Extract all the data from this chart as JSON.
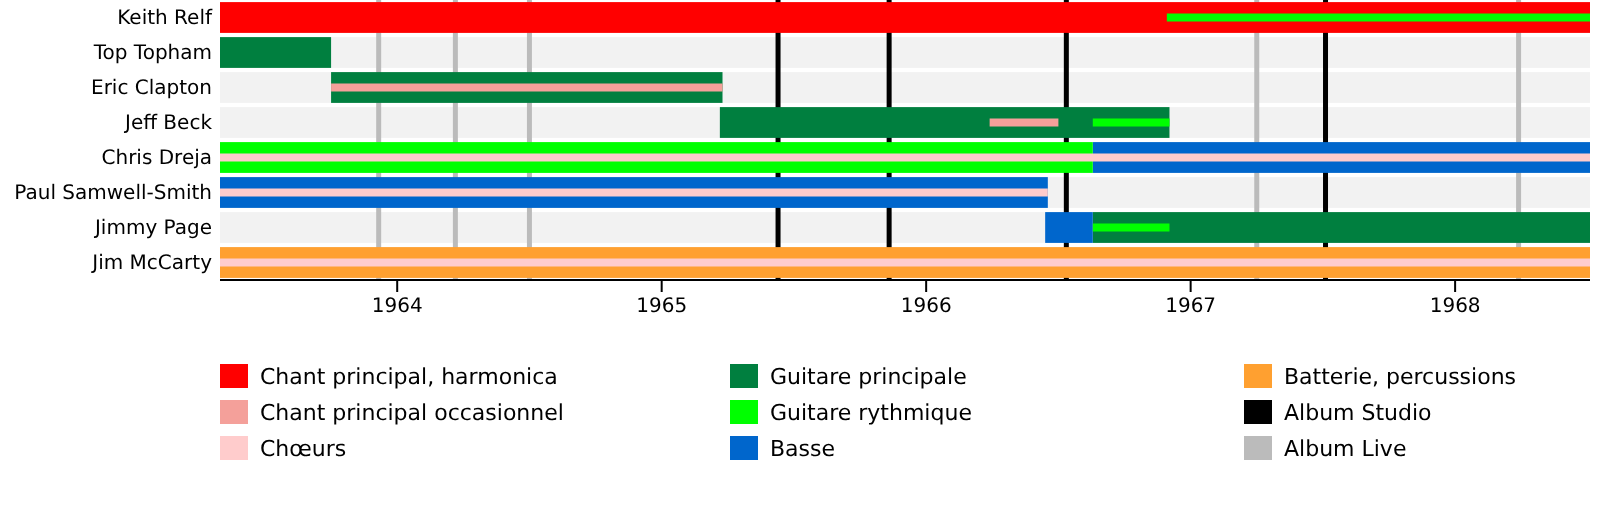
{
  "chart_data": {
    "type": "bar",
    "orientation": "horizontal",
    "categories": [
      "Keith Relf",
      "Top Topham",
      "Eric Clapton",
      "Jeff Beck",
      "Chris Dreja",
      "Paul Samwell-Smith",
      "Jimmy Page",
      "Jim McCarty"
    ],
    "xlim": [
      1963.33,
      1968.51
    ],
    "xticks": [
      1964,
      1965,
      1966,
      1967,
      1968
    ],
    "legend": "bottom",
    "series": [
      {
        "name": "Chant principal, harmonica",
        "color": "#ff0000",
        "base": [
          1963.33,
          null,
          null,
          null,
          null,
          null,
          null,
          null
        ],
        "values": [
          5.18,
          null,
          null,
          null,
          null,
          null,
          null,
          null
        ]
      },
      {
        "name": "Chant principal occasionnel",
        "color": "#f4a09a",
        "base": [
          null,
          null,
          1963.75,
          1966.24,
          null,
          null,
          null,
          null
        ],
        "values": [
          null,
          null,
          1.48,
          0.26,
          null,
          null,
          null,
          null
        ]
      },
      {
        "name": "Chœurs",
        "color": "#ffcccc",
        "base": [
          null,
          null,
          null,
          null,
          1963.33,
          1963.33,
          null,
          1963.33
        ],
        "values": [
          null,
          null,
          null,
          null,
          5.18,
          3.13,
          null,
          5.18
        ]
      },
      {
        "name": "Guitare principale",
        "color": "#007f3f",
        "base": [
          null,
          1963.33,
          1963.75,
          1965.22,
          null,
          null,
          1966.63,
          null
        ],
        "values": [
          null,
          0.42,
          1.48,
          1.7,
          null,
          null,
          1.88,
          null
        ]
      },
      {
        "name": "Guitare rythmique",
        "color": "#00ff00",
        "base": [
          1966.91,
          null,
          null,
          1966.63,
          1963.33,
          null,
          1966.63,
          null
        ],
        "values": [
          1.6,
          null,
          null,
          0.29,
          3.3,
          null,
          0.29,
          null
        ]
      },
      {
        "name": "Basse",
        "color": "#0066cc",
        "base": [
          null,
          null,
          null,
          null,
          1966.63,
          1963.33,
          1966.45,
          null
        ],
        "values": [
          null,
          null,
          null,
          null,
          1.88,
          3.13,
          0.18,
          null
        ]
      },
      {
        "name": "Batterie, percussions",
        "color": "#ffa030",
        "base": [
          null,
          null,
          null,
          null,
          null,
          null,
          null,
          1963.33
        ],
        "values": [
          null,
          null,
          null,
          null,
          null,
          null,
          null,
          5.18
        ]
      }
    ],
    "ref_lines": [
      {
        "axis": "x",
        "value": 1965.44,
        "label": "Album Studio",
        "color": "#000000"
      },
      {
        "axis": "x",
        "value": 1963.93,
        "label": "Album Live",
        "color": "#bbbbbb"
      },
      {
        "axis": "x",
        "value": 1964.22,
        "label": null,
        "color": "#bbbbbb"
      },
      {
        "axis": "x",
        "value": 1964.5,
        "label": null,
        "color": "#bbbbbb"
      },
      {
        "axis": "x",
        "value": 1965.86,
        "label": null,
        "color": "#000000"
      },
      {
        "axis": "x",
        "value": 1966.53,
        "label": null,
        "color": "#000000"
      },
      {
        "axis": "x",
        "value": 1967.25,
        "label": null,
        "color": "#bbbbbb"
      },
      {
        "axis": "x",
        "value": 1967.51,
        "label": null,
        "color": "#000000"
      },
      {
        "axis": "x",
        "value": 1968.24,
        "label": null,
        "color": "#bbbbbb"
      }
    ]
  }
}
